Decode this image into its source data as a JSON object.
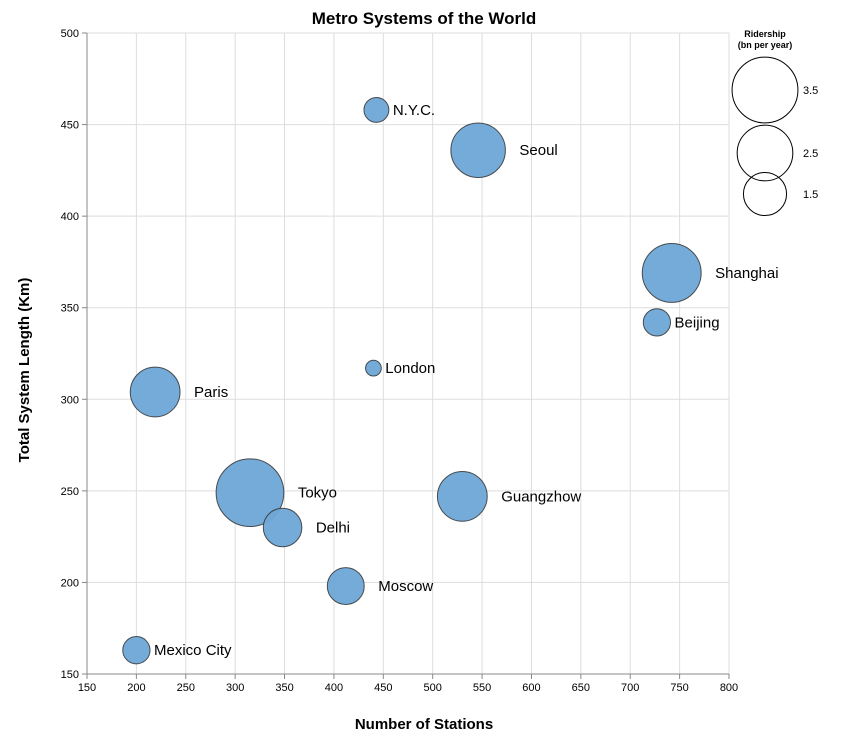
{
  "chart_data": {
    "type": "scatter",
    "title": "Metro Systems of the World",
    "xlabel": "Number of Stations",
    "ylabel": "Total System Length (Km)",
    "xlim": [
      150,
      800
    ],
    "ylim": [
      150,
      500
    ],
    "xticks": [
      150,
      200,
      250,
      300,
      350,
      400,
      450,
      500,
      550,
      600,
      650,
      700,
      750,
      800
    ],
    "yticks": [
      150,
      200,
      250,
      300,
      350,
      400,
      450,
      500
    ],
    "grid": true,
    "bubble_color": "#6ea6d6",
    "size_legend": {
      "title": [
        "Ridership",
        "(bn per year)"
      ],
      "placement": "top-right",
      "values": [
        3.5,
        2.5,
        1.5
      ],
      "labels": [
        "3.5",
        "2.5",
        "1.5"
      ]
    },
    "points": [
      {
        "name": "N.Y.C.",
        "stations": 443,
        "length": 458,
        "ridership": 0.5
      },
      {
        "name": "Seoul",
        "stations": 546,
        "length": 436,
        "ridership": 2.4
      },
      {
        "name": "Shanghai",
        "stations": 742,
        "length": 369,
        "ridership": 2.8
      },
      {
        "name": "Beijing",
        "stations": 727,
        "length": 342,
        "ridership": 0.6
      },
      {
        "name": "London",
        "stations": 440,
        "length": 317,
        "ridership": 0.2
      },
      {
        "name": "Paris",
        "stations": 219,
        "length": 304,
        "ridership": 2.0
      },
      {
        "name": "Tokyo",
        "stations": 315,
        "length": 249,
        "ridership": 3.7
      },
      {
        "name": "Guangzhow",
        "stations": 530,
        "length": 247,
        "ridership": 2.0
      },
      {
        "name": "Delhi",
        "stations": 348,
        "length": 230,
        "ridership": 1.2
      },
      {
        "name": "Moscow",
        "stations": 412,
        "length": 198,
        "ridership": 1.1
      },
      {
        "name": "Mexico City",
        "stations": 200,
        "length": 163,
        "ridership": 0.6
      }
    ]
  }
}
